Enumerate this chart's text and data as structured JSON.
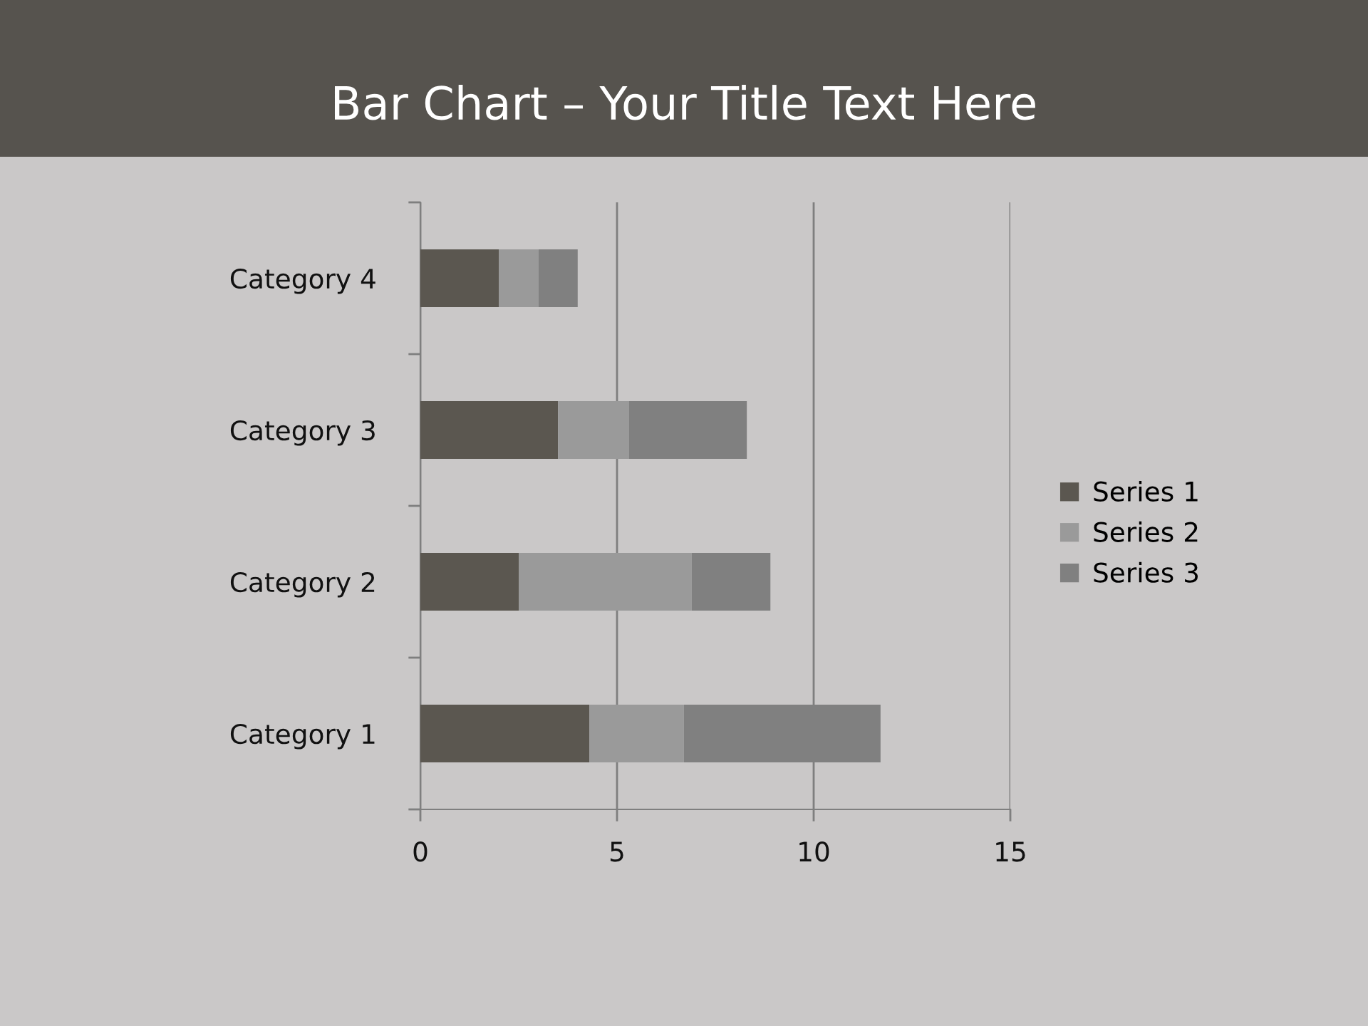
{
  "chart_data": {
    "type": "bar",
    "orientation": "horizontal",
    "stacked": true,
    "title": "Bar Chart – Your Title Text Here",
    "categories": [
      "Category 4",
      "Category 3",
      "Category 2",
      "Category 1"
    ],
    "series": [
      {
        "name": "Series 1",
        "color": "#5b5750",
        "values": [
          2,
          3.5,
          2.5,
          4.3
        ]
      },
      {
        "name": "Series 2",
        "color": "#9a9a9a",
        "values": [
          1,
          1.8,
          4.4,
          2.4
        ]
      },
      {
        "name": "Series 3",
        "color": "#808080",
        "values": [
          1,
          3,
          2,
          5
        ]
      }
    ],
    "xlim": [
      0,
      15
    ],
    "xticks": [
      0,
      5,
      10,
      15
    ],
    "grid": "x",
    "legend": "right"
  }
}
